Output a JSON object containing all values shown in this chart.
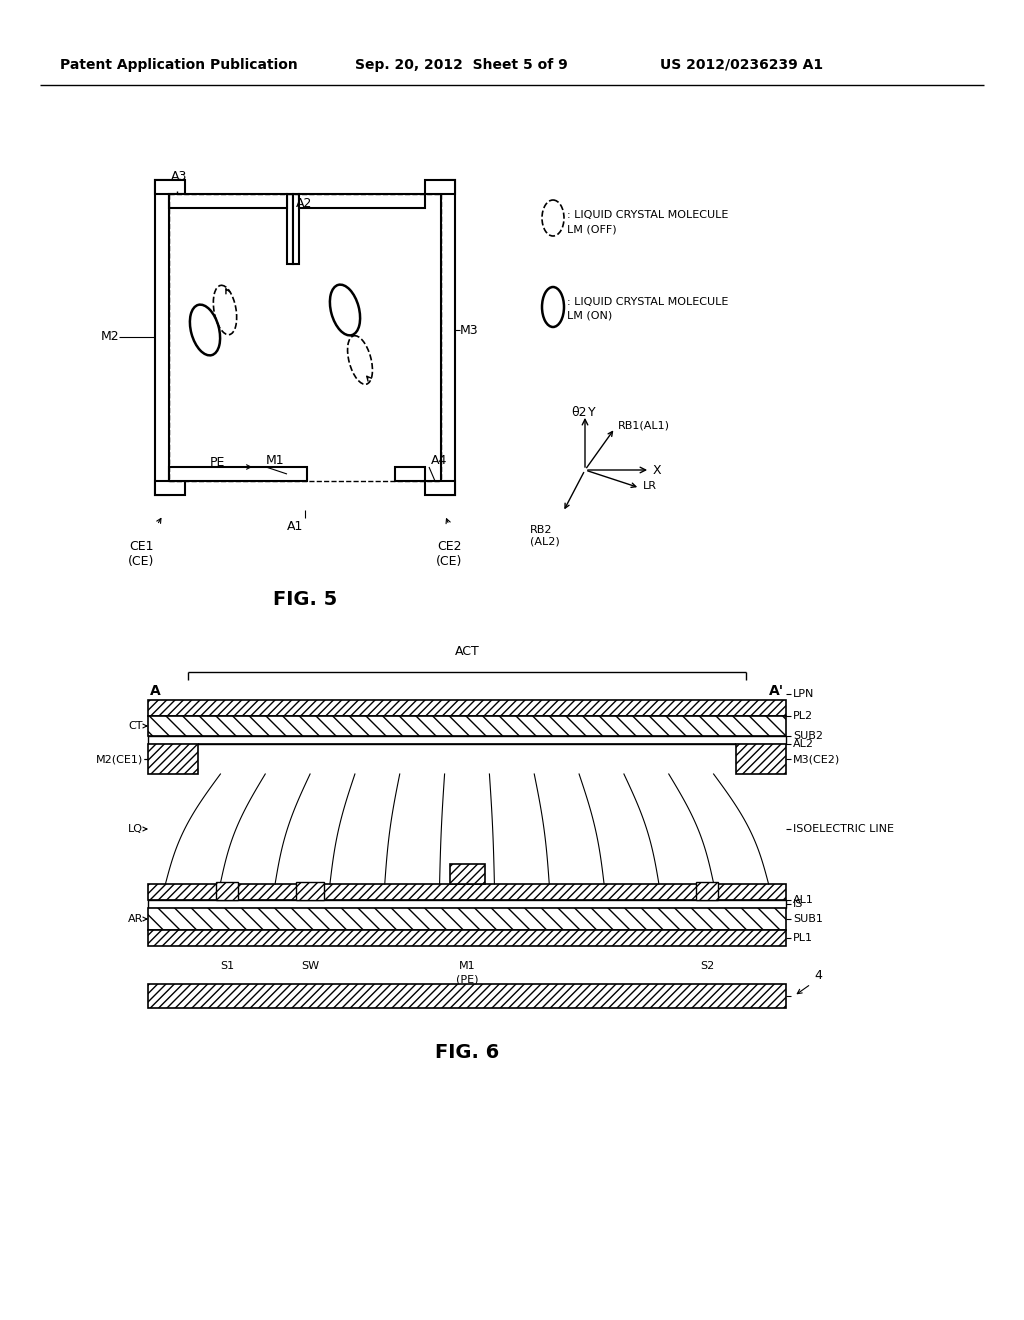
{
  "bg_color": "#ffffff",
  "header_left": "Patent Application Publication",
  "header_mid": "Sep. 20, 2012  Sheet 5 of 9",
  "header_right": "US 2012/0236239 A1"
}
